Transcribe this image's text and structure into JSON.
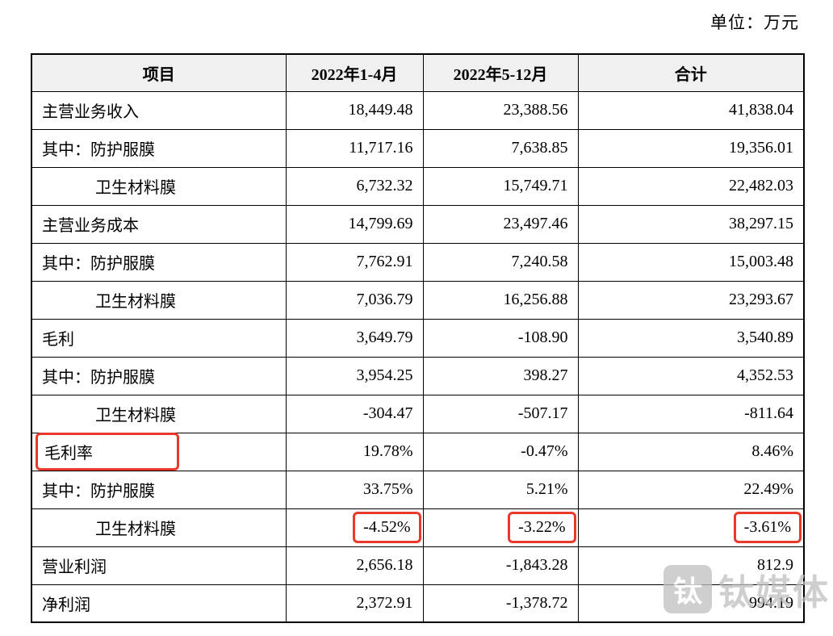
{
  "page": {
    "unit_label": "单位：万元"
  },
  "colors": {
    "annotation_red": "#e8392b",
    "header_bg": "#f0f0f0",
    "border": "#000000",
    "watermark_gray": "#bfbfbf"
  },
  "table": {
    "headers": [
      "项目",
      "2022年1-4月",
      "2022年5-12月",
      "合计"
    ],
    "rows": [
      {
        "label": "主营业务收入",
        "indent": 0,
        "values": [
          "18,449.48",
          "23,388.56",
          "41,838.04"
        ],
        "label_boxed": false,
        "boxed_values": []
      },
      {
        "label": "其中：防护服膜",
        "indent": 0,
        "values": [
          "11,717.16",
          "7,638.85",
          "19,356.01"
        ],
        "label_boxed": false,
        "boxed_values": []
      },
      {
        "label": "卫生材料膜",
        "indent": 1,
        "values": [
          "6,732.32",
          "15,749.71",
          "22,482.03"
        ],
        "label_boxed": false,
        "boxed_values": []
      },
      {
        "label": "主营业务成本",
        "indent": 0,
        "values": [
          "14,799.69",
          "23,497.46",
          "38,297.15"
        ],
        "label_boxed": false,
        "boxed_values": []
      },
      {
        "label": "其中：防护服膜",
        "indent": 0,
        "values": [
          "7,762.91",
          "7,240.58",
          "15,003.48"
        ],
        "label_boxed": false,
        "boxed_values": []
      },
      {
        "label": "卫生材料膜",
        "indent": 1,
        "values": [
          "7,036.79",
          "16,256.88",
          "23,293.67"
        ],
        "label_boxed": false,
        "boxed_values": []
      },
      {
        "label": "毛利",
        "indent": 0,
        "values": [
          "3,649.79",
          "-108.90",
          "3,540.89"
        ],
        "label_boxed": false,
        "boxed_values": []
      },
      {
        "label": "其中：防护服膜",
        "indent": 0,
        "values": [
          "3,954.25",
          "398.27",
          "4,352.53"
        ],
        "label_boxed": false,
        "boxed_values": []
      },
      {
        "label": "卫生材料膜",
        "indent": 1,
        "values": [
          "-304.47",
          "-507.17",
          "-811.64"
        ],
        "label_boxed": false,
        "boxed_values": []
      },
      {
        "label": "毛利率",
        "indent": 0,
        "values": [
          "19.78%",
          "-0.47%",
          "8.46%"
        ],
        "label_boxed": true,
        "boxed_values": []
      },
      {
        "label": "其中：防护服膜",
        "indent": 0,
        "values": [
          "33.75%",
          "5.21%",
          "22.49%"
        ],
        "label_boxed": false,
        "boxed_values": []
      },
      {
        "label": "卫生材料膜",
        "indent": 1,
        "values": [
          "-4.52%",
          "-3.22%",
          "-3.61%"
        ],
        "label_boxed": false,
        "boxed_values": [
          0,
          1,
          2
        ]
      },
      {
        "label": "营业利润",
        "indent": 0,
        "values": [
          "2,656.18",
          "-1,843.28",
          "812.9"
        ],
        "label_boxed": false,
        "boxed_values": []
      },
      {
        "label": "净利润",
        "indent": 0,
        "values": [
          "2,372.91",
          "-1,378.72",
          "994.19"
        ],
        "label_boxed": false,
        "boxed_values": []
      }
    ]
  },
  "watermark": {
    "text": "钛媒体",
    "logo_glyph": "钛"
  }
}
